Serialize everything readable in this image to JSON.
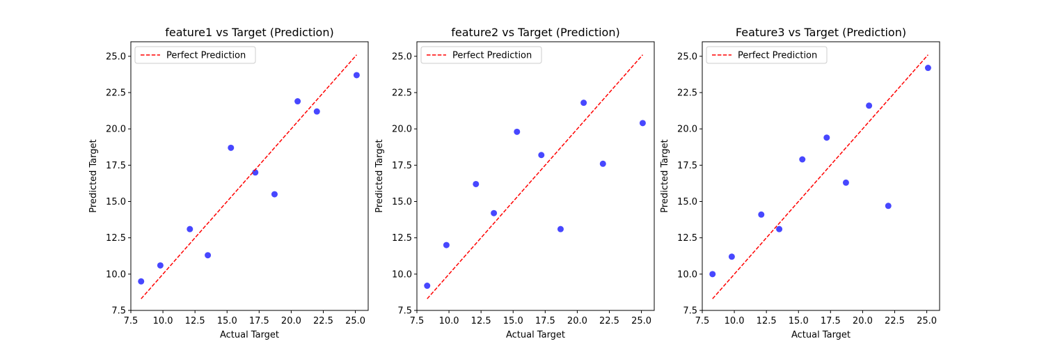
{
  "chart_data": [
    {
      "type": "scatter",
      "title": "feature1 vs Target (Prediction)",
      "xlabel": "Actual Target",
      "ylabel": "Predicted Target",
      "xlim": [
        7.5,
        26.0
      ],
      "ylim": [
        7.5,
        26.0
      ],
      "xticks": [
        "7.5",
        "10.0",
        "12.5",
        "15.0",
        "17.5",
        "20.0",
        "22.5",
        "25.0"
      ],
      "yticks": [
        "7.5",
        "10.0",
        "12.5",
        "15.0",
        "17.5",
        "20.0",
        "22.5",
        "25.0"
      ],
      "grid": false,
      "legend_position": "upper-left",
      "series": [
        {
          "type": "scatter",
          "color": "#0000ff",
          "x": [
            8.3,
            9.8,
            12.1,
            13.5,
            15.3,
            17.2,
            18.7,
            20.5,
            22.0,
            25.1
          ],
          "y": [
            9.5,
            10.6,
            13.1,
            11.3,
            18.7,
            17.0,
            15.5,
            21.9,
            21.2,
            23.7
          ]
        },
        {
          "name": "Perfect Prediction",
          "type": "line",
          "style": "dashed",
          "color": "#ff0000",
          "x": [
            8.3,
            25.1
          ],
          "y": [
            8.3,
            25.1
          ]
        }
      ]
    },
    {
      "type": "scatter",
      "title": "feature2 vs Target (Prediction)",
      "xlabel": "Actual Target",
      "ylabel": "Predicted Target",
      "xlim": [
        7.5,
        26.0
      ],
      "ylim": [
        7.5,
        26.0
      ],
      "xticks": [
        "7.5",
        "10.0",
        "12.5",
        "15.0",
        "17.5",
        "20.0",
        "22.5",
        "25.0"
      ],
      "yticks": [
        "7.5",
        "10.0",
        "12.5",
        "15.0",
        "17.5",
        "20.0",
        "22.5",
        "25.0"
      ],
      "grid": false,
      "legend_position": "upper-left",
      "series": [
        {
          "type": "scatter",
          "color": "#0000ff",
          "x": [
            8.3,
            9.8,
            12.1,
            13.5,
            15.3,
            17.2,
            18.7,
            20.5,
            22.0,
            25.1
          ],
          "y": [
            9.2,
            12.0,
            16.2,
            14.2,
            19.8,
            18.2,
            13.1,
            21.8,
            17.6,
            20.4
          ]
        },
        {
          "name": "Perfect Prediction",
          "type": "line",
          "style": "dashed",
          "color": "#ff0000",
          "x": [
            8.3,
            25.1
          ],
          "y": [
            8.3,
            25.1
          ]
        }
      ]
    },
    {
      "type": "scatter",
      "title": "Feature3 vs Target (Prediction)",
      "xlabel": "Actual Target",
      "ylabel": "Predicted Target",
      "xlim": [
        7.5,
        26.0
      ],
      "ylim": [
        7.5,
        26.0
      ],
      "xticks": [
        "7.5",
        "10.0",
        "12.5",
        "15.0",
        "17.5",
        "20.0",
        "22.5",
        "25.0"
      ],
      "yticks": [
        "7.5",
        "10.0",
        "12.5",
        "15.0",
        "17.5",
        "20.0",
        "22.5",
        "25.0"
      ],
      "grid": false,
      "legend_position": "upper-left",
      "series": [
        {
          "type": "scatter",
          "color": "#0000ff",
          "x": [
            8.3,
            9.8,
            12.1,
            13.5,
            15.3,
            17.2,
            18.7,
            20.5,
            22.0,
            25.1
          ],
          "y": [
            10.0,
            11.2,
            14.1,
            13.1,
            17.9,
            19.4,
            16.3,
            21.6,
            14.7,
            24.2
          ]
        },
        {
          "name": "Perfect Prediction",
          "type": "line",
          "style": "dashed",
          "color": "#ff0000",
          "x": [
            8.3,
            25.1
          ],
          "y": [
            8.3,
            25.1
          ]
        }
      ]
    }
  ]
}
